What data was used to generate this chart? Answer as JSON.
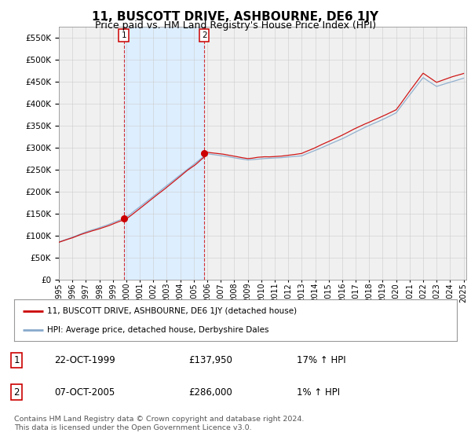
{
  "title": "11, BUSCOTT DRIVE, ASHBOURNE, DE6 1JY",
  "subtitle": "Price paid vs. HM Land Registry's House Price Index (HPI)",
  "ylim": [
    0,
    575000
  ],
  "yticks": [
    0,
    50000,
    100000,
    150000,
    200000,
    250000,
    300000,
    350000,
    400000,
    450000,
    500000,
    550000
  ],
  "xlim_start": 1995.0,
  "xlim_end": 2025.2,
  "sale1_date": 1999.81,
  "sale1_price": 137950,
  "sale1_label": "1",
  "sale2_date": 2005.77,
  "sale2_price": 286000,
  "sale2_label": "2",
  "red_color": "#cc0000",
  "blue_color": "#88aacc",
  "shade_color": "#ddeeff",
  "background_color": "#ffffff",
  "chart_bg_color": "#f0f0f0",
  "grid_color": "#cccccc",
  "legend_label_red": "11, BUSCOTT DRIVE, ASHBOURNE, DE6 1JY (detached house)",
  "legend_label_blue": "HPI: Average price, detached house, Derbyshire Dales",
  "table_entries": [
    {
      "num": "1",
      "date": "22-OCT-1999",
      "price": "£137,950",
      "change": "17% ↑ HPI"
    },
    {
      "num": "2",
      "date": "07-OCT-2005",
      "price": "£286,000",
      "change": "1% ↑ HPI"
    }
  ],
  "footer": "Contains HM Land Registry data © Crown copyright and database right 2024.\nThis data is licensed under the Open Government Licence v3.0.",
  "title_fontsize": 11,
  "subtitle_fontsize": 9
}
